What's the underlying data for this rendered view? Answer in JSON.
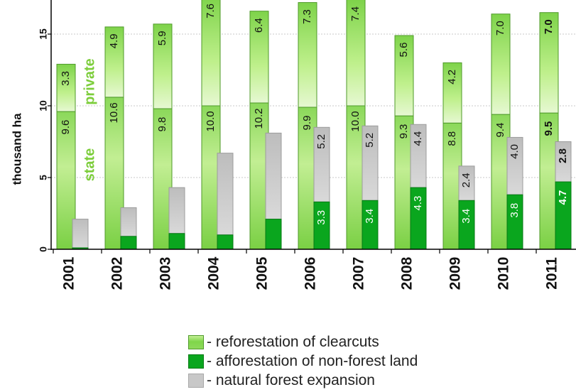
{
  "chart_data": {
    "type": "bar",
    "title": "",
    "ylabel": "thousand ha",
    "ylim": [
      0,
      18
    ],
    "yticks": [
      0,
      5,
      10,
      15
    ],
    "grid": true,
    "categories": [
      "2001",
      "2002",
      "2003",
      "2004",
      "2005",
      "2006",
      "2007",
      "2008",
      "2009",
      "2010",
      "2011"
    ],
    "series": [
      {
        "name": "reforestation of clearcuts",
        "stack": "reforestation",
        "parts": [
          {
            "name": "state",
            "values": [
              9.6,
              10.6,
              9.8,
              10.0,
              10.2,
              9.9,
              10.0,
              9.3,
              8.8,
              9.4,
              9.5
            ]
          },
          {
            "name": "private",
            "values": [
              3.3,
              4.9,
              5.9,
              7.6,
              6.4,
              7.3,
              7.4,
              5.6,
              4.2,
              7.0,
              7.0
            ]
          }
        ],
        "color": "#7fd64a"
      },
      {
        "name": "afforestation of non-forest land",
        "stack": "expansion",
        "values": [
          0.1,
          0.9,
          1.1,
          1.0,
          2.1,
          3.3,
          3.4,
          4.3,
          3.4,
          3.8,
          4.7
        ],
        "labels": [
          "",
          "",
          "",
          "",
          "",
          "3.3",
          "3.4",
          "4.3",
          "3.4",
          "3.8",
          "4.7"
        ],
        "color": "#0aa61e"
      },
      {
        "name": "natural forest expansion",
        "stack": "expansion",
        "values": [
          2.0,
          2.0,
          3.2,
          5.7,
          6.0,
          5.2,
          5.2,
          4.4,
          2.4,
          4.0,
          2.8
        ],
        "labels": [
          "",
          "",
          "",
          "",
          "",
          "5.2",
          "5.2",
          "4.4",
          "2.4",
          "4.0",
          "2.8"
        ],
        "color": "#c8c8c8"
      }
    ],
    "state_labels": [
      "9.6",
      "10.6",
      "9.8",
      "10.0",
      "10.2",
      "9.9",
      "10.0",
      "9.3",
      "8.8",
      "9.4",
      "9.5"
    ],
    "private_labels": [
      "3.3",
      "4.9",
      "5.9",
      "7.6",
      "6.4",
      "7.3",
      "7.4",
      "5.6",
      "4.2",
      "7.0",
      "7.0"
    ],
    "annotations": [
      "private",
      "state"
    ],
    "legend": {
      "placement": "bottom",
      "items": [
        {
          "swatch": "reforestation",
          "label": "- reforestation of clearcuts"
        },
        {
          "swatch": "afforestation",
          "label": "- afforestation of non-forest land"
        },
        {
          "swatch": "natural",
          "label": "- natural forest expansion"
        }
      ]
    }
  }
}
